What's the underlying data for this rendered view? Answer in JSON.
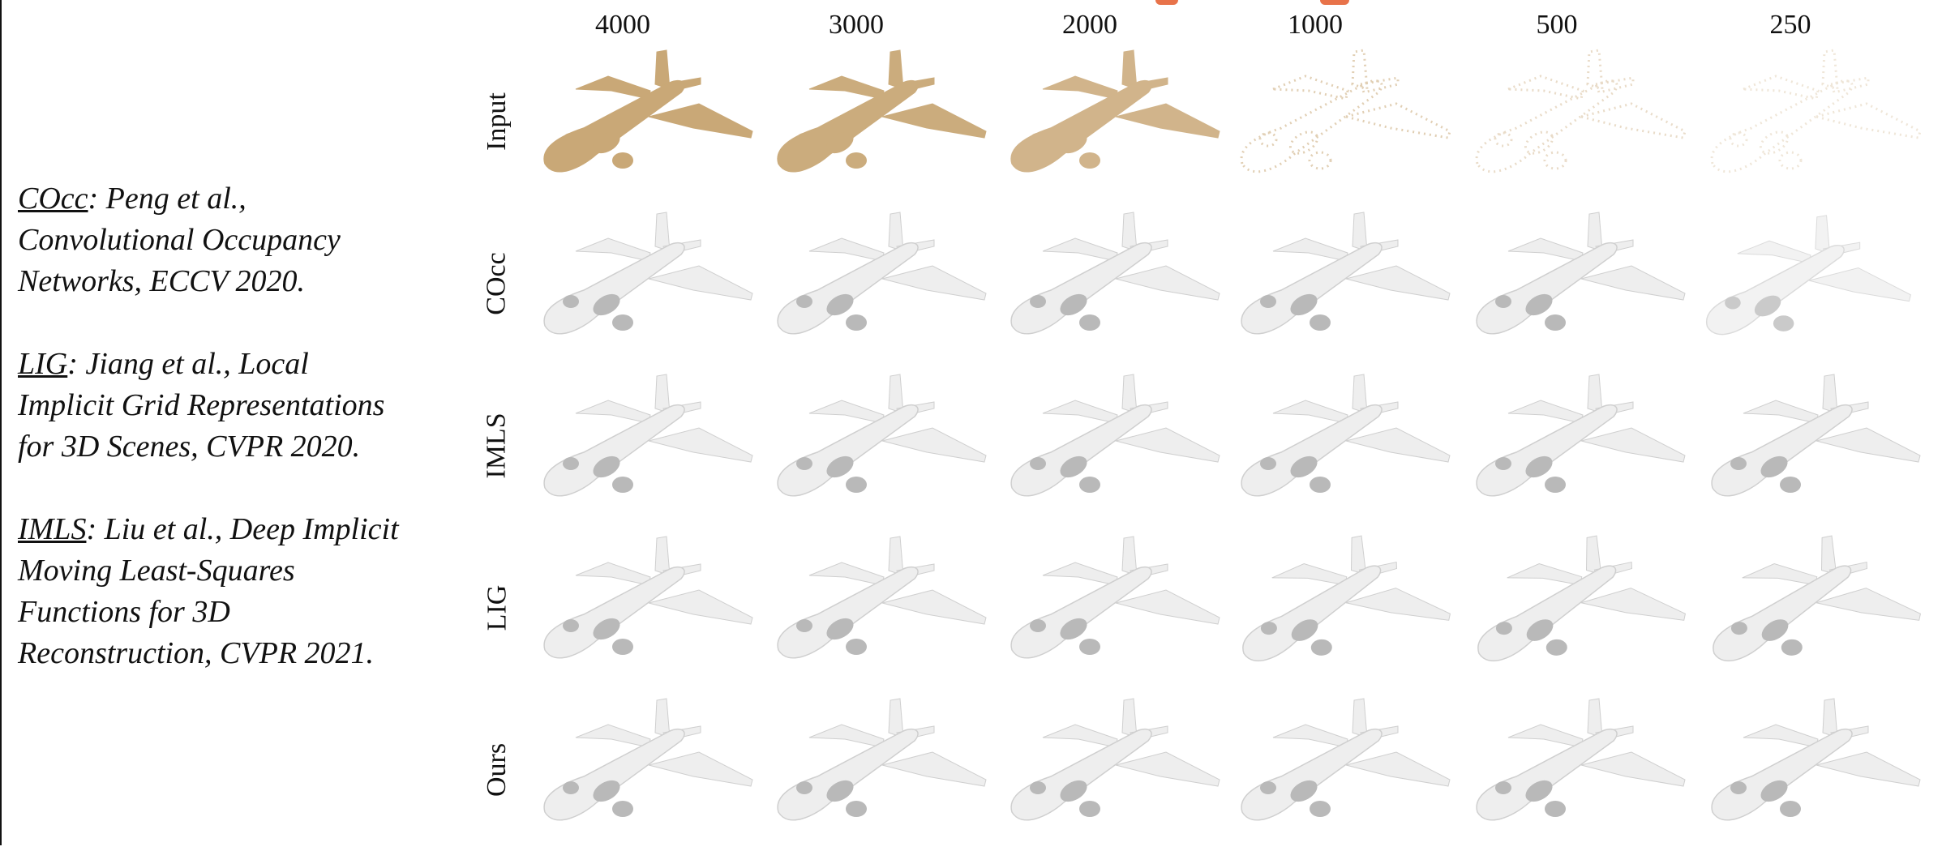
{
  "references": [
    {
      "abbr": "COcc",
      "lines": [
        ": Peng et al.,",
        "Convolutional Occupancy",
        "Networks, ECCV 2020."
      ]
    },
    {
      "abbr": "LIG",
      "lines": [
        ": Jiang et al., Local",
        "Implicit Grid Representations",
        "for 3D Scenes, CVPR 2020."
      ]
    },
    {
      "abbr": "IMLS",
      "lines": [
        ": Liu et al., Deep Implicit",
        "Moving Least-Squares",
        "Functions for 3D",
        "Reconstruction, CVPR 2021."
      ]
    }
  ],
  "columns": [
    "4000",
    "3000",
    "2000",
    "1000",
    "500",
    "250"
  ],
  "rows": [
    "Input",
    "COcc",
    "IMLS",
    "LIG",
    "Ours"
  ],
  "colors": {
    "point": "#c9a877",
    "surface": "#eeeeee",
    "shade": "#b9b9b9",
    "accent": "#e8734a"
  }
}
